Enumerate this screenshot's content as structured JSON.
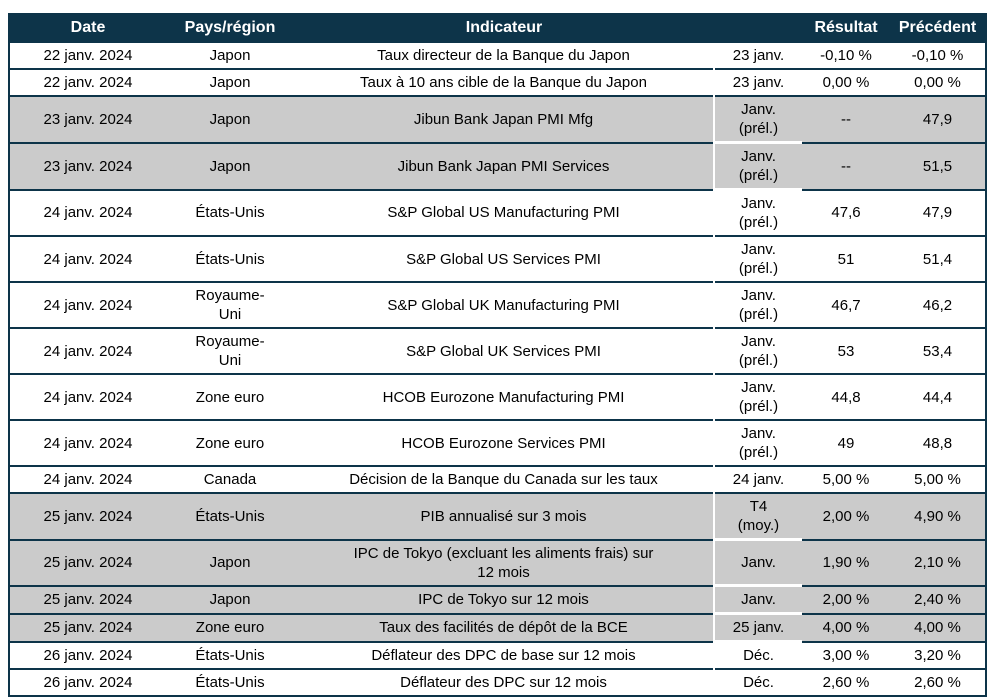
{
  "colors": {
    "header_bg": "#0d3449",
    "border": "#0d3449",
    "shaded_row_bg": "#cbcbcb",
    "header_text": "#ffffff",
    "body_text": "#000000"
  },
  "table": {
    "columns": [
      {
        "key": "date",
        "label": "Date"
      },
      {
        "key": "region",
        "label": "Pays/région"
      },
      {
        "key": "indicator",
        "label": "Indicateur"
      },
      {
        "key": "period",
        "label": ""
      },
      {
        "key": "result",
        "label": "Résultat"
      },
      {
        "key": "previous",
        "label": "Précédent"
      }
    ],
    "rows": [
      {
        "date": "22 janv. 2024",
        "region": "Japon",
        "indicator": "Taux directeur de la Banque du Japon",
        "period": "23 janv.",
        "result": "-0,10 %",
        "previous": "-0,10 %",
        "shaded": false
      },
      {
        "date": "22 janv. 2024",
        "region": "Japon",
        "indicator": "Taux à 10 ans cible de la Banque du Japon",
        "period": "23 janv.",
        "result": "0,00 %",
        "previous": "0,00 %",
        "shaded": false
      },
      {
        "date": "23 janv. 2024",
        "region": "Japon",
        "indicator": "Jibun Bank Japan PMI Mfg",
        "period": "Janv.\n(prél.)",
        "result": "--",
        "previous": "47,9",
        "shaded": true
      },
      {
        "date": "23 janv. 2024",
        "region": "Japon",
        "indicator": "Jibun Bank Japan PMI Services",
        "period": "Janv.\n(prél.)",
        "result": "--",
        "previous": "51,5",
        "shaded": true
      },
      {
        "date": "24 janv. 2024",
        "region": "États-Unis",
        "indicator": "S&P Global US Manufacturing PMI",
        "period": "Janv.\n(prél.)",
        "result": "47,6",
        "previous": "47,9",
        "shaded": false
      },
      {
        "date": "24 janv. 2024",
        "region": "États-Unis",
        "indicator": "S&P Global US Services PMI",
        "period": "Janv.\n(prél.)",
        "result": "51",
        "previous": "51,4",
        "shaded": false
      },
      {
        "date": "24 janv. 2024",
        "region": "Royaume-\nUni",
        "indicator": "S&P Global UK Manufacturing PMI",
        "period": "Janv.\n(prél.)",
        "result": "46,7",
        "previous": "46,2",
        "shaded": false
      },
      {
        "date": "24 janv. 2024",
        "region": "Royaume-\nUni",
        "indicator": "S&P Global UK Services PMI",
        "period": "Janv.\n(prél.)",
        "result": "53",
        "previous": "53,4",
        "shaded": false
      },
      {
        "date": "24 janv. 2024",
        "region": "Zone euro",
        "indicator": "HCOB Eurozone Manufacturing PMI",
        "period": "Janv.\n(prél.)",
        "result": "44,8",
        "previous": "44,4",
        "shaded": false
      },
      {
        "date": "24 janv. 2024",
        "region": "Zone euro",
        "indicator": "HCOB Eurozone Services PMI",
        "period": "Janv.\n(prél.)",
        "result": "49",
        "previous": "48,8",
        "shaded": false
      },
      {
        "date": "24 janv. 2024",
        "region": "Canada",
        "indicator": "Décision de la Banque du Canada sur les taux",
        "period": "24 janv.",
        "result": "5,00 %",
        "previous": "5,00 %",
        "shaded": false
      },
      {
        "date": "25 janv. 2024",
        "region": "États-Unis",
        "indicator": "PIB annualisé sur 3 mois",
        "period": "T4\n(moy.)",
        "result": "2,00 %",
        "previous": "4,90 %",
        "shaded": true
      },
      {
        "date": "25 janv. 2024",
        "region": "Japon",
        "indicator": "IPC de Tokyo (excluant les aliments frais) sur\n12 mois",
        "period": "Janv.",
        "result": "1,90 %",
        "previous": "2,10 %",
        "shaded": true
      },
      {
        "date": "25 janv. 2024",
        "region": "Japon",
        "indicator": "IPC de Tokyo sur 12 mois",
        "period": "Janv.",
        "result": "2,00 %",
        "previous": "2,40 %",
        "shaded": true
      },
      {
        "date": "25 janv. 2024",
        "region": "Zone euro",
        "indicator": "Taux des facilités de dépôt de la BCE",
        "period": "25 janv.",
        "result": "4,00 %",
        "previous": "4,00 %",
        "shaded": true
      },
      {
        "date": "26 janv. 2024",
        "region": "États-Unis",
        "indicator": "Déflateur des DPC de base sur 12 mois",
        "period": "Déc.",
        "result": "3,00 %",
        "previous": "3,20 %",
        "shaded": false
      },
      {
        "date": "26 janv. 2024",
        "region": "États-Unis",
        "indicator": "Déflateur des DPC sur 12 mois",
        "period": "Déc.",
        "result": "2,60 %",
        "previous": "2,60 %",
        "shaded": false
      }
    ]
  }
}
